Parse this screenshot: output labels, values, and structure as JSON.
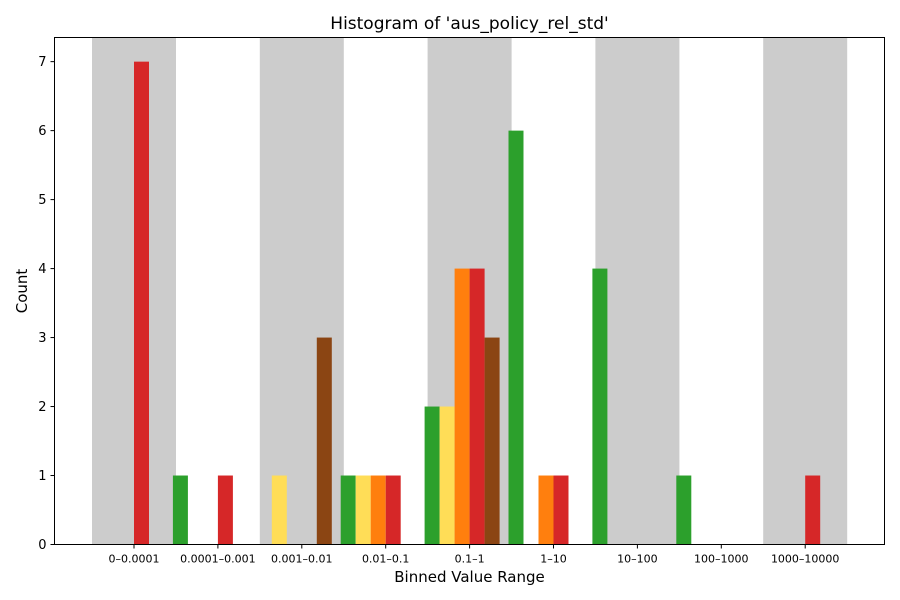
{
  "chart_data": {
    "type": "bar",
    "title": "Histogram of 'aus_policy_rel_std'",
    "xlabel": "Binned Value Range",
    "ylabel": "Count",
    "ylim": [
      0,
      7.35
    ],
    "yticks": [
      0,
      1,
      2,
      3,
      4,
      5,
      6,
      7
    ],
    "grid": false,
    "categories": [
      "0–0.0001",
      "0.0001–0.001",
      "0.001–0.01",
      "0.01–0.1",
      "0.1–1",
      "1–10",
      "10–100",
      "100–1000",
      "1000–10000"
    ],
    "shaded_bands": [
      0,
      2,
      4,
      6,
      8
    ],
    "band_color": "#cccccc",
    "series": [
      {
        "color": "#2ca02c",
        "values": [
          0,
          1,
          0,
          1,
          2,
          6,
          4,
          1,
          0
        ]
      },
      {
        "color": "#ffdd57",
        "values": [
          0,
          0,
          1,
          1,
          2,
          0,
          0,
          0,
          0
        ]
      },
      {
        "color": "#ff7f0e",
        "values": [
          0,
          0,
          0,
          1,
          4,
          1,
          0,
          0,
          0
        ]
      },
      {
        "color": "#d62728",
        "values": [
          7,
          1,
          0,
          1,
          4,
          1,
          0,
          0,
          1
        ]
      },
      {
        "color": "#8b4513",
        "values": [
          0,
          0,
          3,
          0,
          3,
          0,
          0,
          0,
          0
        ]
      }
    ]
  }
}
